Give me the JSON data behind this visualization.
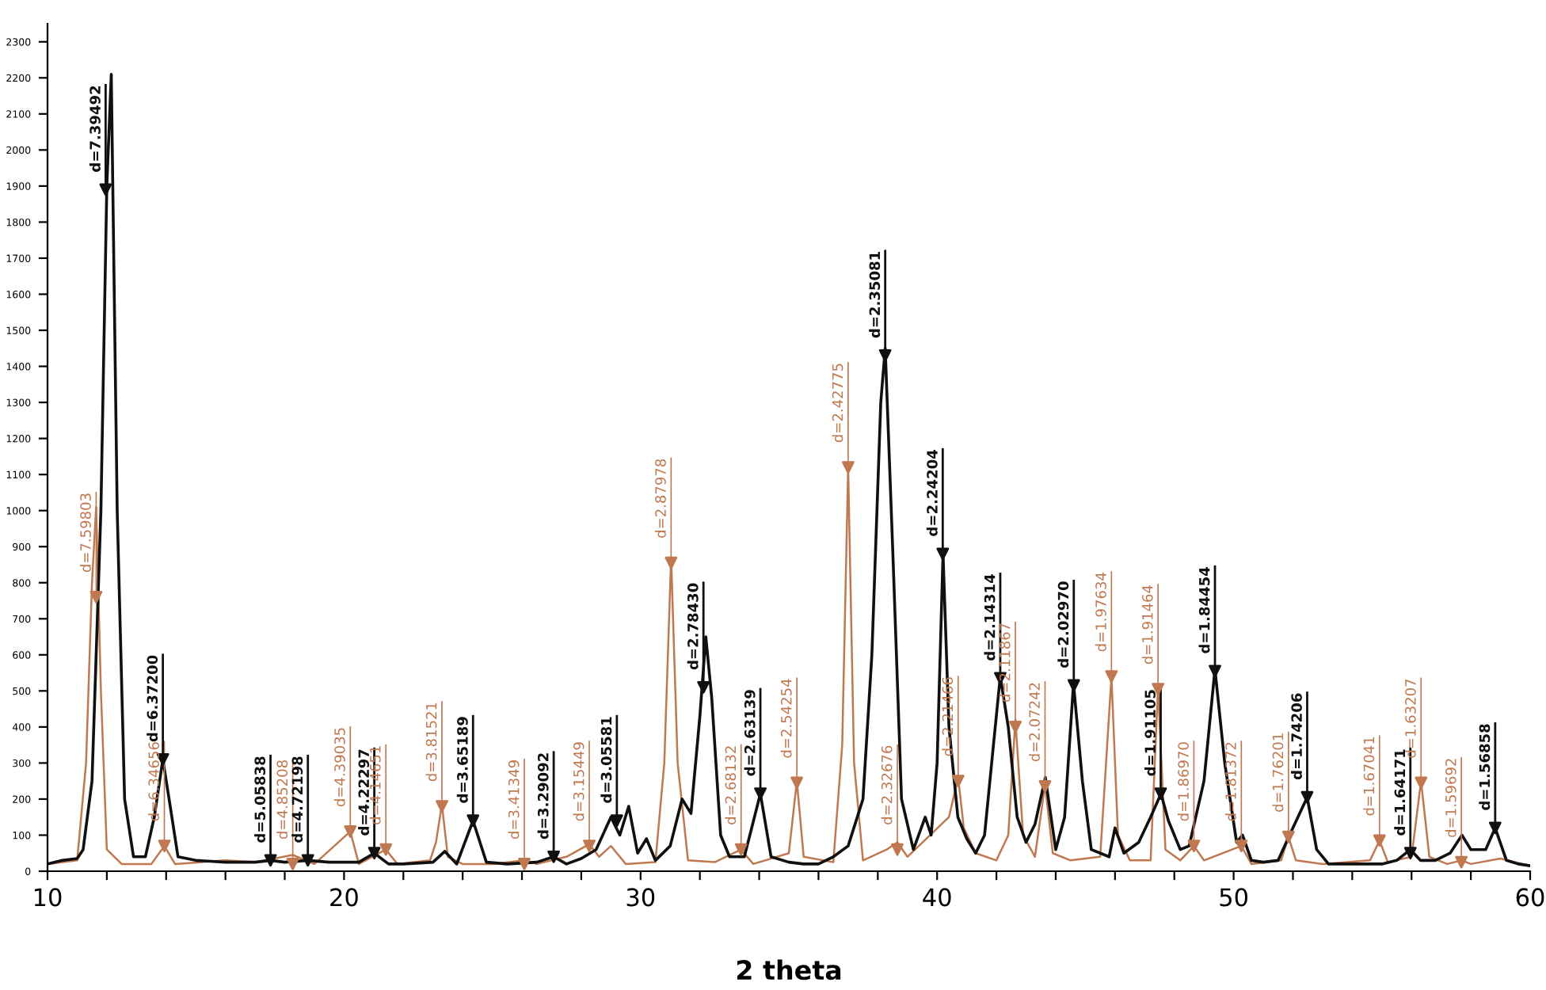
{
  "chart_data": {
    "type": "line",
    "xlabel": "2 theta",
    "xlim": [
      10,
      60
    ],
    "ylim": [
      0,
      2350
    ],
    "xticks": [
      10,
      {
        "value": 12,
        "label": null
      },
      {
        "value": 14,
        "label": null
      },
      {
        "value": 16,
        "label": null
      },
      {
        "value": 18,
        "label": null
      },
      20,
      {
        "value": 22,
        "label": null
      },
      {
        "value": 24,
        "label": null
      },
      {
        "value": 26,
        "label": null
      },
      {
        "value": 28,
        "label": null
      },
      30,
      {
        "value": 32,
        "label": null
      },
      {
        "value": 34,
        "label": null
      },
      {
        "value": 36,
        "label": null
      },
      {
        "value": 38,
        "label": null
      },
      40,
      {
        "value": 42,
        "label": null
      },
      {
        "value": 44,
        "label": null
      },
      {
        "value": 46,
        "label": null
      },
      {
        "value": 48,
        "label": null
      },
      50,
      {
        "value": 52,
        "label": null
      },
      {
        "value": 54,
        "label": null
      },
      {
        "value": 56,
        "label": null
      },
      {
        "value": 58,
        "label": null
      },
      60
    ],
    "yticks": [
      0,
      100,
      200,
      300,
      400,
      500,
      600,
      700,
      800,
      900,
      1000,
      1100,
      1200,
      1300,
      1400,
      1500,
      1600,
      1700,
      1800,
      1900,
      2000,
      2100,
      2200,
      2300
    ],
    "grid": false,
    "series": [
      {
        "color": "#c07850",
        "x": [
          10,
          11,
          11.3,
          11.5,
          11.64,
          11.8,
          12.0,
          12.5,
          13.5,
          13.94,
          14.3,
          16,
          17,
          18.27,
          19,
          20.21,
          20.5,
          21.41,
          21.8,
          22.9,
          23.1,
          23.3,
          23.5,
          24,
          25,
          26.08,
          26.5,
          27.5,
          28.27,
          28.6,
          29.0,
          29.2,
          29.5,
          30.5,
          30.8,
          31.03,
          31.25,
          31.6,
          32.5,
          33.39,
          33.8,
          35.0,
          35.27,
          35.5,
          36.5,
          36.8,
          37.0,
          37.2,
          37.5,
          38.3,
          38.66,
          39.0,
          40.4,
          40.71,
          40.9,
          41.3,
          42.0,
          42.4,
          42.64,
          42.9,
          43.3,
          43.64,
          43.9,
          44.5,
          45.5,
          45.88,
          46.1,
          46.5,
          47.2,
          47.45,
          47.7,
          48.2,
          48.66,
          49,
          50.26,
          50.6,
          51.6,
          51.85,
          52.1,
          53,
          54.6,
          54.92,
          55.2,
          56.0,
          56.32,
          56.6,
          57.2,
          57.68,
          58,
          59,
          60
        ],
        "values": [
          20,
          30,
          300,
          800,
          1010,
          500,
          60,
          20,
          20,
          70,
          20,
          30,
          25,
          45,
          20,
          110,
          20,
          60,
          20,
          30,
          80,
          185,
          40,
          20,
          20,
          30,
          20,
          40,
          75,
          40,
          70,
          50,
          20,
          25,
          300,
          870,
          300,
          30,
          25,
          60,
          20,
          50,
          250,
          40,
          25,
          350,
          1120,
          300,
          30,
          60,
          80,
          40,
          150,
          260,
          120,
          50,
          30,
          100,
          420,
          100,
          40,
          240,
          50,
          30,
          40,
          540,
          100,
          30,
          30,
          510,
          60,
          30,
          70,
          30,
          70,
          20,
          30,
          95,
          30,
          20,
          30,
          85,
          25,
          40,
          250,
          40,
          20,
          30,
          20,
          35,
          15
        ]
      },
      {
        "color": "#101010",
        "x": [
          10,
          10.5,
          11,
          11.2,
          11.5,
          11.8,
          12.0,
          12.15,
          12.35,
          12.6,
          12.9,
          13.3,
          13.6,
          13.89,
          14.1,
          14.4,
          15,
          16,
          17,
          17.52,
          18,
          18.78,
          19.5,
          20.5,
          21.02,
          21.5,
          22,
          23,
          23.4,
          23.8,
          24.35,
          24.8,
          25.5,
          26.5,
          27.07,
          27.5,
          28,
          28.5,
          29.0,
          29.3,
          29.6,
          29.9,
          30.2,
          30.5,
          31.0,
          31.4,
          31.7,
          32.0,
          32.2,
          32.4,
          32.7,
          33,
          33.5,
          34.04,
          34.4,
          35,
          35.5,
          36,
          36.5,
          37,
          37.5,
          37.8,
          38.1,
          38.25,
          38.5,
          38.8,
          39.2,
          39.6,
          39.8,
          40.0,
          40.2,
          40.4,
          40.7,
          41.0,
          41.3,
          41.6,
          41.9,
          42.13,
          42.4,
          42.7,
          43,
          43.3,
          43.65,
          44.0,
          44.3,
          44.6,
          44.9,
          45.2,
          45.8,
          46.0,
          46.3,
          46.8,
          47.2,
          47.55,
          47.8,
          48.2,
          48.5,
          49.0,
          49.37,
          49.7,
          50.1,
          50.3,
          50.6,
          51,
          51.5,
          52.0,
          52.48,
          52.8,
          53.2,
          54,
          55,
          55.5,
          55.96,
          56.3,
          56.8,
          57.3,
          57.7,
          58,
          58.5,
          58.82,
          59.2,
          59.6,
          60
        ],
        "values": [
          20,
          30,
          35,
          60,
          250,
          1000,
          1900,
          2210,
          1000,
          200,
          40,
          40,
          150,
          310,
          200,
          40,
          30,
          25,
          25,
          30,
          25,
          30,
          25,
          25,
          50,
          20,
          20,
          25,
          55,
          20,
          140,
          25,
          20,
          25,
          40,
          20,
          35,
          60,
          150,
          100,
          180,
          50,
          90,
          30,
          70,
          200,
          160,
          430,
          650,
          480,
          100,
          40,
          40,
          215,
          40,
          25,
          20,
          20,
          40,
          70,
          200,
          600,
          1300,
          1450,
          900,
          200,
          60,
          150,
          100,
          300,
          880,
          400,
          150,
          90,
          50,
          100,
          350,
          540,
          400,
          150,
          80,
          130,
          260,
          60,
          150,
          520,
          250,
          60,
          40,
          120,
          50,
          80,
          150,
          215,
          140,
          60,
          70,
          250,
          560,
          300,
          80,
          100,
          30,
          25,
          30,
          120,
          205,
          60,
          20,
          20,
          20,
          30,
          60,
          30,
          30,
          50,
          100,
          60,
          60,
          120,
          30,
          20,
          15
        ]
      },
      {
        "type": "scatter",
        "marker": "triangle",
        "color": "#c07850",
        "x": [
          11.64,
          13.94,
          18.27,
          20.21,
          21.41,
          23.3,
          26.08,
          28.27,
          31.03,
          33.39,
          35.27,
          37.0,
          38.66,
          40.71,
          42.64,
          43.64,
          45.88,
          47.45,
          48.66,
          50.26,
          51.85,
          54.92,
          56.32,
          57.68
        ],
        "values": [
          760,
          70,
          20,
          110,
          60,
          180,
          20,
          70,
          855,
          60,
          245,
          1120,
          60,
          250,
          400,
          235,
          540,
          505,
          70,
          70,
          95,
          85,
          245,
          25
        ]
      },
      {
        "type": "scatter",
        "marker": "triangle",
        "color": "#101010",
        "x": [
          11.96,
          13.89,
          17.52,
          18.78,
          21.02,
          24.35,
          27.07,
          29.2,
          32.12,
          34.04,
          38.25,
          40.19,
          42.13,
          44.61,
          47.54,
          49.37,
          52.48,
          55.96,
          58.82
        ],
        "values": [
          1890,
          310,
          30,
          30,
          50,
          140,
          40,
          140,
          510,
          215,
          1430,
          880,
          535,
          515,
          215,
          555,
          205,
          50,
          120
        ]
      }
    ],
    "annotations": [
      {
        "text": "d=7.59803",
        "x": 11.64,
        "y": 760
      },
      {
        "text": "d=6.34656",
        "x": 13.94,
        "y": 70
      },
      {
        "text": "d=4.85208",
        "x": 18.27,
        "y": 20
      },
      {
        "text": "d=4.39035",
        "x": 20.21,
        "y": 110
      },
      {
        "text": "d=4.14651",
        "x": 21.41,
        "y": 60
      },
      {
        "text": "d=3.81521",
        "x": 23.3,
        "y": 180
      },
      {
        "text": "d=3.41349",
        "x": 26.08,
        "y": 20
      },
      {
        "text": "d=3.15449",
        "x": 28.27,
        "y": 70
      },
      {
        "text": "d=2.87978",
        "x": 31.03,
        "y": 855
      },
      {
        "text": "d=2.68132",
        "x": 33.39,
        "y": 60
      },
      {
        "text": "d=2.54254",
        "x": 35.27,
        "y": 245
      },
      {
        "text": "d=2.42775",
        "x": 37.0,
        "y": 1120
      },
      {
        "text": "d=2.32676",
        "x": 38.66,
        "y": 60
      },
      {
        "text": "d=2.21466",
        "x": 40.71,
        "y": 250
      },
      {
        "text": "d=2.11867",
        "x": 42.64,
        "y": 400
      },
      {
        "text": "d=2.07242",
        "x": 43.64,
        "y": 235
      },
      {
        "text": "d=1.97634",
        "x": 45.88,
        "y": 540
      },
      {
        "text": "d=1.91464",
        "x": 47.45,
        "y": 505
      },
      {
        "text": "d=1.86970",
        "x": 48.66,
        "y": 70
      },
      {
        "text": "d=1.81372",
        "x": 50.26,
        "y": 70
      },
      {
        "text": "d=1.76201",
        "x": 51.85,
        "y": 95
      },
      {
        "text": "d=1.67041",
        "x": 54.92,
        "y": 85
      },
      {
        "text": "d=1.63207",
        "x": 56.32,
        "y": 245
      },
      {
        "text": "d=1.59692",
        "x": 57.68,
        "y": 25
      },
      {
        "text": "d=7.39492",
        "x": 11.96,
        "y": 1890
      },
      {
        "text": "d=6.37200",
        "x": 13.89,
        "y": 310
      },
      {
        "text": "d=5.05838",
        "x": 17.52,
        "y": 30
      },
      {
        "text": "d=4.72198",
        "x": 18.78,
        "y": 30
      },
      {
        "text": "d=4.22297",
        "x": 21.02,
        "y": 50
      },
      {
        "text": "d=3.65189",
        "x": 24.35,
        "y": 140
      },
      {
        "text": "d=3.29092",
        "x": 27.07,
        "y": 40
      },
      {
        "text": "d=3.05581",
        "x": 29.2,
        "y": 140
      },
      {
        "text": "d=2.78430",
        "x": 32.12,
        "y": 510
      },
      {
        "text": "d=2.63139",
        "x": 34.04,
        "y": 215
      },
      {
        "text": "d=2.35081",
        "x": 38.25,
        "y": 1430
      },
      {
        "text": "d=2.24204",
        "x": 40.19,
        "y": 880
      },
      {
        "text": "d=2.14314",
        "x": 42.13,
        "y": 535
      },
      {
        "text": "d=2.02970",
        "x": 44.61,
        "y": 515
      },
      {
        "text": "d=1.91105",
        "x": 47.54,
        "y": 215
      },
      {
        "text": "d=1.84454",
        "x": 49.37,
        "y": 555
      },
      {
        "text": "d=1.74206",
        "x": 52.48,
        "y": 205
      },
      {
        "text": "d=1.64171",
        "x": 55.96,
        "y": 50
      },
      {
        "text": "d=1.56858",
        "x": 58.82,
        "y": 120
      }
    ]
  }
}
